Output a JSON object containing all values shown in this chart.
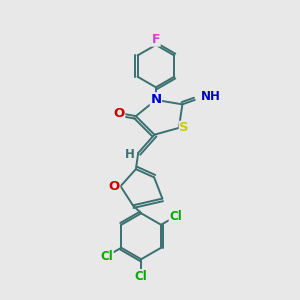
{
  "background_color": "#e8e8e8",
  "bond_color": "#3a7070",
  "atom_colors": {
    "F": "#cc44cc",
    "N": "#0000cc",
    "O": "#cc0000",
    "S": "#cccc00",
    "Cl": "#00aa00",
    "H": "#3a7070",
    "C": "#3a7070"
  },
  "line_width": 1.4,
  "font_size": 8.5
}
